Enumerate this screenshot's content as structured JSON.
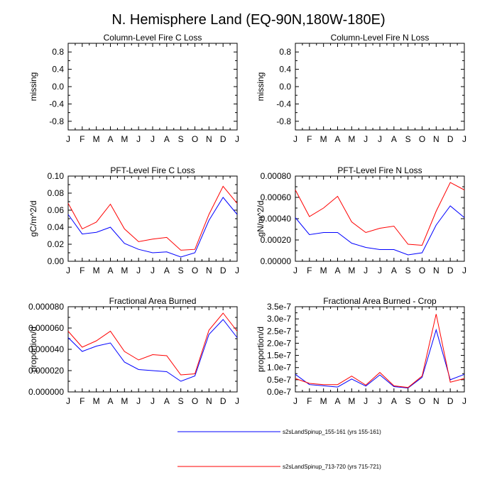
{
  "title": "N. Hemisphere Land (EQ-90N,180W-180E)",
  "months": [
    "J",
    "F",
    "M",
    "A",
    "M",
    "J",
    "J",
    "A",
    "S",
    "O",
    "N",
    "D",
    "J"
  ],
  "legend": [
    {
      "label": "s2sLandSpinup_155-161 (yrs 155-161)",
      "color": "#0000ff"
    },
    {
      "label": "s2sLandSpinup_713-720 (yrs 715-721)",
      "color": "#ff0000"
    }
  ],
  "chart_data": [
    {
      "type": "line",
      "title": "Column-Level Fire C Loss",
      "ylabel": "missing",
      "ylim": [
        -1.0,
        1.0
      ],
      "yticks": [
        -0.8,
        -0.4,
        0.0,
        0.4,
        0.8
      ],
      "ytick_labels": [
        "-0.8",
        "-0.4",
        "0.0",
        "0.4",
        "0.8"
      ],
      "series": []
    },
    {
      "type": "line",
      "title": "Column-Level Fire N Loss",
      "ylabel": "missing",
      "ylim": [
        -1.0,
        1.0
      ],
      "yticks": [
        -0.8,
        -0.4,
        0.0,
        0.4,
        0.8
      ],
      "ytick_labels": [
        "-0.8",
        "-0.4",
        "0.0",
        "0.4",
        "0.8"
      ],
      "series": []
    },
    {
      "type": "line",
      "title": "PFT-Level Fire C Loss",
      "ylabel": "gC/m^2/d",
      "ylim": [
        0.0,
        0.1
      ],
      "yticks": [
        0.0,
        0.02,
        0.04,
        0.06,
        0.08,
        0.1
      ],
      "ytick_labels": [
        "0.00",
        "0.02",
        "0.04",
        "0.06",
        "0.08",
        "0.10"
      ],
      "series": [
        {
          "name": "s2sLandSpinup_155-161 (yrs 155-161)",
          "values": [
            0.055,
            0.032,
            0.034,
            0.04,
            0.021,
            0.014,
            0.01,
            0.011,
            0.005,
            0.01,
            0.048,
            0.075,
            0.055
          ]
        },
        {
          "name": "s2sLandSpinup_713-720 (yrs 715-721)",
          "values": [
            0.068,
            0.038,
            0.046,
            0.067,
            0.038,
            0.023,
            0.026,
            0.028,
            0.013,
            0.014,
            0.055,
            0.088,
            0.068
          ]
        }
      ]
    },
    {
      "type": "line",
      "title": "PFT-Level Fire N Loss",
      "ylabel": "gN/m^2/d",
      "ylim": [
        0.0,
        0.0008
      ],
      "yticks": [
        0.0,
        0.0002,
        0.0004,
        0.0006,
        0.0008
      ],
      "ytick_labels": [
        "0.00000",
        "0.00020",
        "0.00040",
        "0.00060",
        "0.00080"
      ],
      "series": [
        {
          "name": "s2sLandSpinup_155-161 (yrs 155-161)",
          "values": [
            0.00041,
            0.00025,
            0.00027,
            0.00027,
            0.00017,
            0.00013,
            0.00011,
            0.00011,
            6e-05,
            8e-05,
            0.00034,
            0.00052,
            0.00041
          ]
        },
        {
          "name": "s2sLandSpinup_713-720 (yrs 715-721)",
          "values": [
            0.00067,
            0.00042,
            0.0005,
            0.00061,
            0.00037,
            0.00027,
            0.00031,
            0.00033,
            0.00016,
            0.00015,
            0.00047,
            0.00074,
            0.00067
          ]
        }
      ]
    },
    {
      "type": "line",
      "title": "Fractional Area Burned",
      "ylabel": "proportion/d",
      "ylim": [
        0.0,
        8e-05
      ],
      "yticks": [
        0.0,
        2e-05,
        4e-05,
        6e-05,
        8e-05
      ],
      "ytick_labels": [
        "0.000000",
        "0.000020",
        "0.000040",
        "0.000060",
        "0.000080"
      ],
      "series": [
        {
          "name": "s2sLandSpinup_155-161 (yrs 155-161)",
          "values": [
            5.1e-05,
            3.8e-05,
            4.3e-05,
            4.6e-05,
            2.8e-05,
            2.1e-05,
            2e-05,
            1.9e-05,
            1e-05,
            1.5e-05,
            5.4e-05,
            6.8e-05,
            5.1e-05
          ]
        },
        {
          "name": "s2sLandSpinup_713-720 (yrs 715-721)",
          "values": [
            5.7e-05,
            4.2e-05,
            4.8e-05,
            5.7e-05,
            3.8e-05,
            3e-05,
            3.5e-05,
            3.4e-05,
            1.6e-05,
            1.7e-05,
            5.8e-05,
            7.4e-05,
            5.7e-05
          ]
        }
      ]
    },
    {
      "type": "line",
      "title": "Fractional Area Burned - Crop",
      "ylabel": "proportion/d",
      "ylim": [
        0.0,
        3.5e-07
      ],
      "yticks": [
        0.0,
        5e-08,
        1e-07,
        1.5e-07,
        2e-07,
        2.5e-07,
        3e-07,
        3.5e-07
      ],
      "ytick_labels": [
        "0.0e-7",
        "0.5e-7",
        "1.0e-7",
        "1.5e-7",
        "2.0e-7",
        "2.5e-7",
        "3.0e-7",
        "3.5e-7"
      ],
      "series": [
        {
          "name": "s2sLandSpinup_155-161 (yrs 155-161)",
          "values": [
            7.2e-08,
            3e-08,
            2.5e-08,
            2e-08,
            5.3e-08,
            2.4e-08,
            7e-08,
            2.2e-08,
            1.6e-08,
            6e-08,
            2.55e-07,
            5e-08,
            7.2e-08
          ]
        },
        {
          "name": "s2sLandSpinup_713-720 (yrs 715-721)",
          "values": [
            5.5e-08,
            3.5e-08,
            3e-08,
            3e-08,
            6.5e-08,
            2.8e-08,
            8e-08,
            2.5e-08,
            1.8e-08,
            6.5e-08,
            3.2e-07,
            4e-08,
            5.5e-08
          ]
        }
      ]
    }
  ]
}
